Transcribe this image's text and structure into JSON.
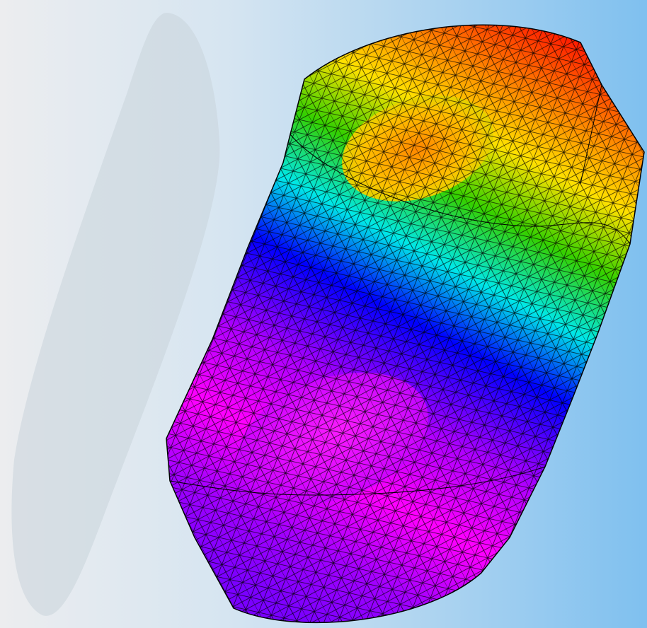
{
  "scene": {
    "description_icon": "fem-mesh-viewport",
    "background_colors": [
      "#ecedef",
      "#d6e5f1",
      "#a9d2f0",
      "#7fc0ef"
    ],
    "colormap": [
      "#ff0000",
      "#ff8000",
      "#ffff00",
      "#00d000",
      "#00ffff",
      "#0000ff",
      "#ff00ff",
      "#8000ff"
    ],
    "mesh_edge_color": "#000000",
    "shadow_color": "#c9d3da"
  }
}
